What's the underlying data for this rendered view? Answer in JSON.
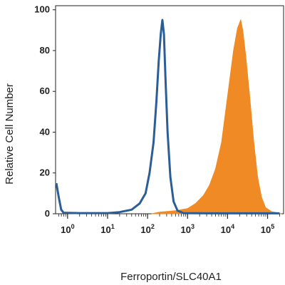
{
  "chart_data": {
    "type": "area",
    "xlabel": "Ferroportin/SLC40A1",
    "ylabel": "Relative Cell Number",
    "x_scale": "log",
    "xlim_exponent": [
      -0.3,
      5.4
    ],
    "ylim": [
      0,
      102
    ],
    "y_ticks": [
      "0",
      "20",
      "40",
      "60",
      "80",
      "100"
    ],
    "x_ticks": [
      {
        "base": "10",
        "exp": "0"
      },
      {
        "base": "10",
        "exp": "1"
      },
      {
        "base": "10",
        "exp": "2"
      },
      {
        "base": "10",
        "exp": "3"
      },
      {
        "base": "10",
        "exp": "4"
      },
      {
        "base": "10",
        "exp": "5"
      }
    ],
    "series": [
      {
        "style": "outline",
        "color": "#2b5d97",
        "points_log10x_y": [
          [
            -0.28,
            15
          ],
          [
            -0.22,
            8
          ],
          [
            -0.16,
            2
          ],
          [
            -0.1,
            0.5
          ],
          [
            0.3,
            0.3
          ],
          [
            1.0,
            0.3
          ],
          [
            1.3,
            0.8
          ],
          [
            1.6,
            2
          ],
          [
            1.8,
            5
          ],
          [
            1.95,
            10
          ],
          [
            2.05,
            20
          ],
          [
            2.15,
            35
          ],
          [
            2.22,
            55
          ],
          [
            2.28,
            75
          ],
          [
            2.33,
            88
          ],
          [
            2.37,
            95
          ],
          [
            2.41,
            88
          ],
          [
            2.45,
            65
          ],
          [
            2.5,
            40
          ],
          [
            2.57,
            18
          ],
          [
            2.65,
            6
          ],
          [
            2.75,
            1.5
          ],
          [
            2.9,
            0.3
          ],
          [
            3.5,
            0.2
          ],
          [
            5.3,
            0.2
          ]
        ]
      },
      {
        "style": "filled",
        "color": "#f08a24",
        "points_log10x_y": [
          [
            2.1,
            0
          ],
          [
            2.3,
            0.8
          ],
          [
            2.7,
            1.5
          ],
          [
            3.0,
            2.5
          ],
          [
            3.2,
            5
          ],
          [
            3.4,
            9
          ],
          [
            3.55,
            14
          ],
          [
            3.7,
            22
          ],
          [
            3.85,
            35
          ],
          [
            3.95,
            50
          ],
          [
            4.05,
            65
          ],
          [
            4.15,
            80
          ],
          [
            4.25,
            91
          ],
          [
            4.33,
            95
          ],
          [
            4.38,
            90
          ],
          [
            4.45,
            78
          ],
          [
            4.55,
            58
          ],
          [
            4.65,
            36
          ],
          [
            4.75,
            18
          ],
          [
            4.85,
            8
          ],
          [
            4.95,
            3
          ],
          [
            5.1,
            1
          ],
          [
            5.3,
            0.3
          ],
          [
            5.35,
            0
          ]
        ]
      }
    ]
  }
}
